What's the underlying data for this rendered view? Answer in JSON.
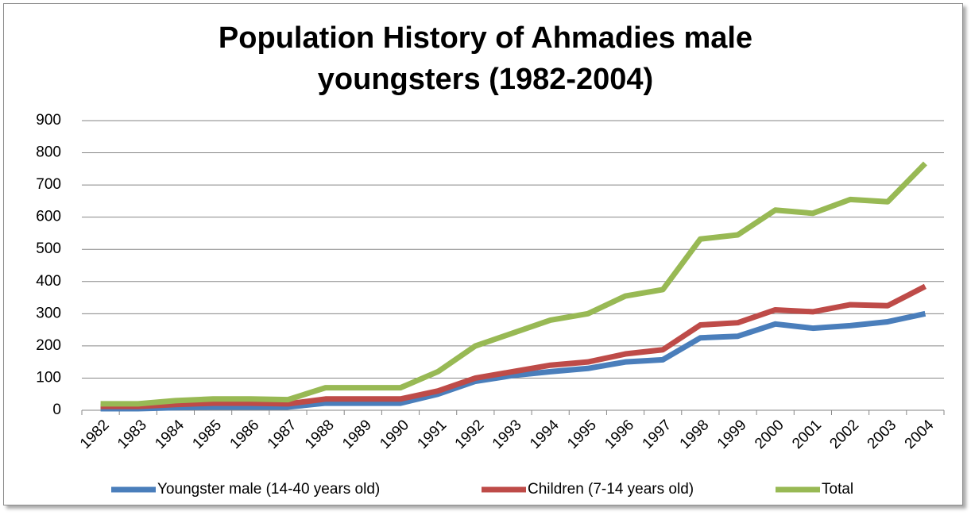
{
  "chart_data": {
    "type": "line",
    "title": "Population History of Ahmadies male youngsters (1982-2004)",
    "categories": [
      "1982",
      "1983",
      "1984",
      "1985",
      "1986",
      "1987",
      "1988",
      "1989",
      "1990",
      "1991",
      "1992",
      "1993",
      "1994",
      "1995",
      "1996",
      "1997",
      "1998",
      "1999",
      "2000",
      "2001",
      "2002",
      "2003",
      "2004"
    ],
    "series": [
      {
        "name": "Youngster male (14-40 years old)",
        "color": "#4a7ebb",
        "values": [
          5,
          5,
          8,
          10,
          10,
          10,
          22,
          22,
          22,
          50,
          90,
          108,
          120,
          130,
          150,
          157,
          225,
          230,
          268,
          255,
          263,
          275,
          300
        ]
      },
      {
        "name": "Children (7-14 years old)",
        "color": "#be4b48",
        "values": [
          12,
          12,
          18,
          22,
          22,
          20,
          35,
          35,
          35,
          60,
          100,
          120,
          140,
          150,
          175,
          188,
          265,
          272,
          312,
          306,
          328,
          325,
          385
        ]
      },
      {
        "name": "Total",
        "color": "#98b954",
        "values": [
          20,
          20,
          30,
          35,
          35,
          33,
          70,
          70,
          70,
          120,
          200,
          240,
          280,
          300,
          355,
          375,
          532,
          545,
          622,
          612,
          655,
          648,
          767
        ]
      }
    ],
    "ylim": [
      0,
      900
    ],
    "yticks": [
      0,
      100,
      200,
      300,
      400,
      500,
      600,
      700,
      800,
      900
    ],
    "grid": true,
    "legend": "bottom"
  }
}
